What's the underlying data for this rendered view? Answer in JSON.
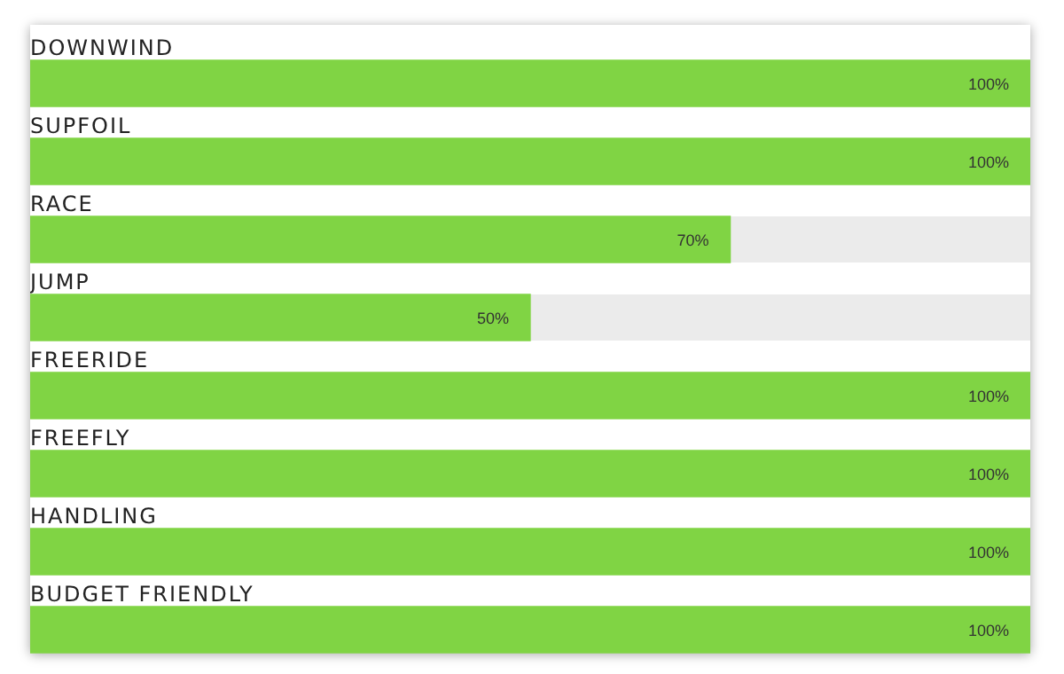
{
  "chart_data": {
    "type": "bar",
    "orientation": "horizontal",
    "categories": [
      "DOWNWIND",
      "SUPFOIL",
      "RACE",
      "JUMP",
      "FREERIDE",
      "FREEFLY",
      "HANDLING",
      "BUDGET FRIENDLY"
    ],
    "values": [
      100,
      100,
      70,
      50,
      100,
      100,
      100,
      100
    ],
    "value_labels": [
      "100%",
      "100%",
      "70%",
      "50%",
      "100%",
      "100%",
      "100%",
      "100%"
    ],
    "color": "#80d444",
    "xlim": [
      0,
      100
    ],
    "legend": false
  }
}
